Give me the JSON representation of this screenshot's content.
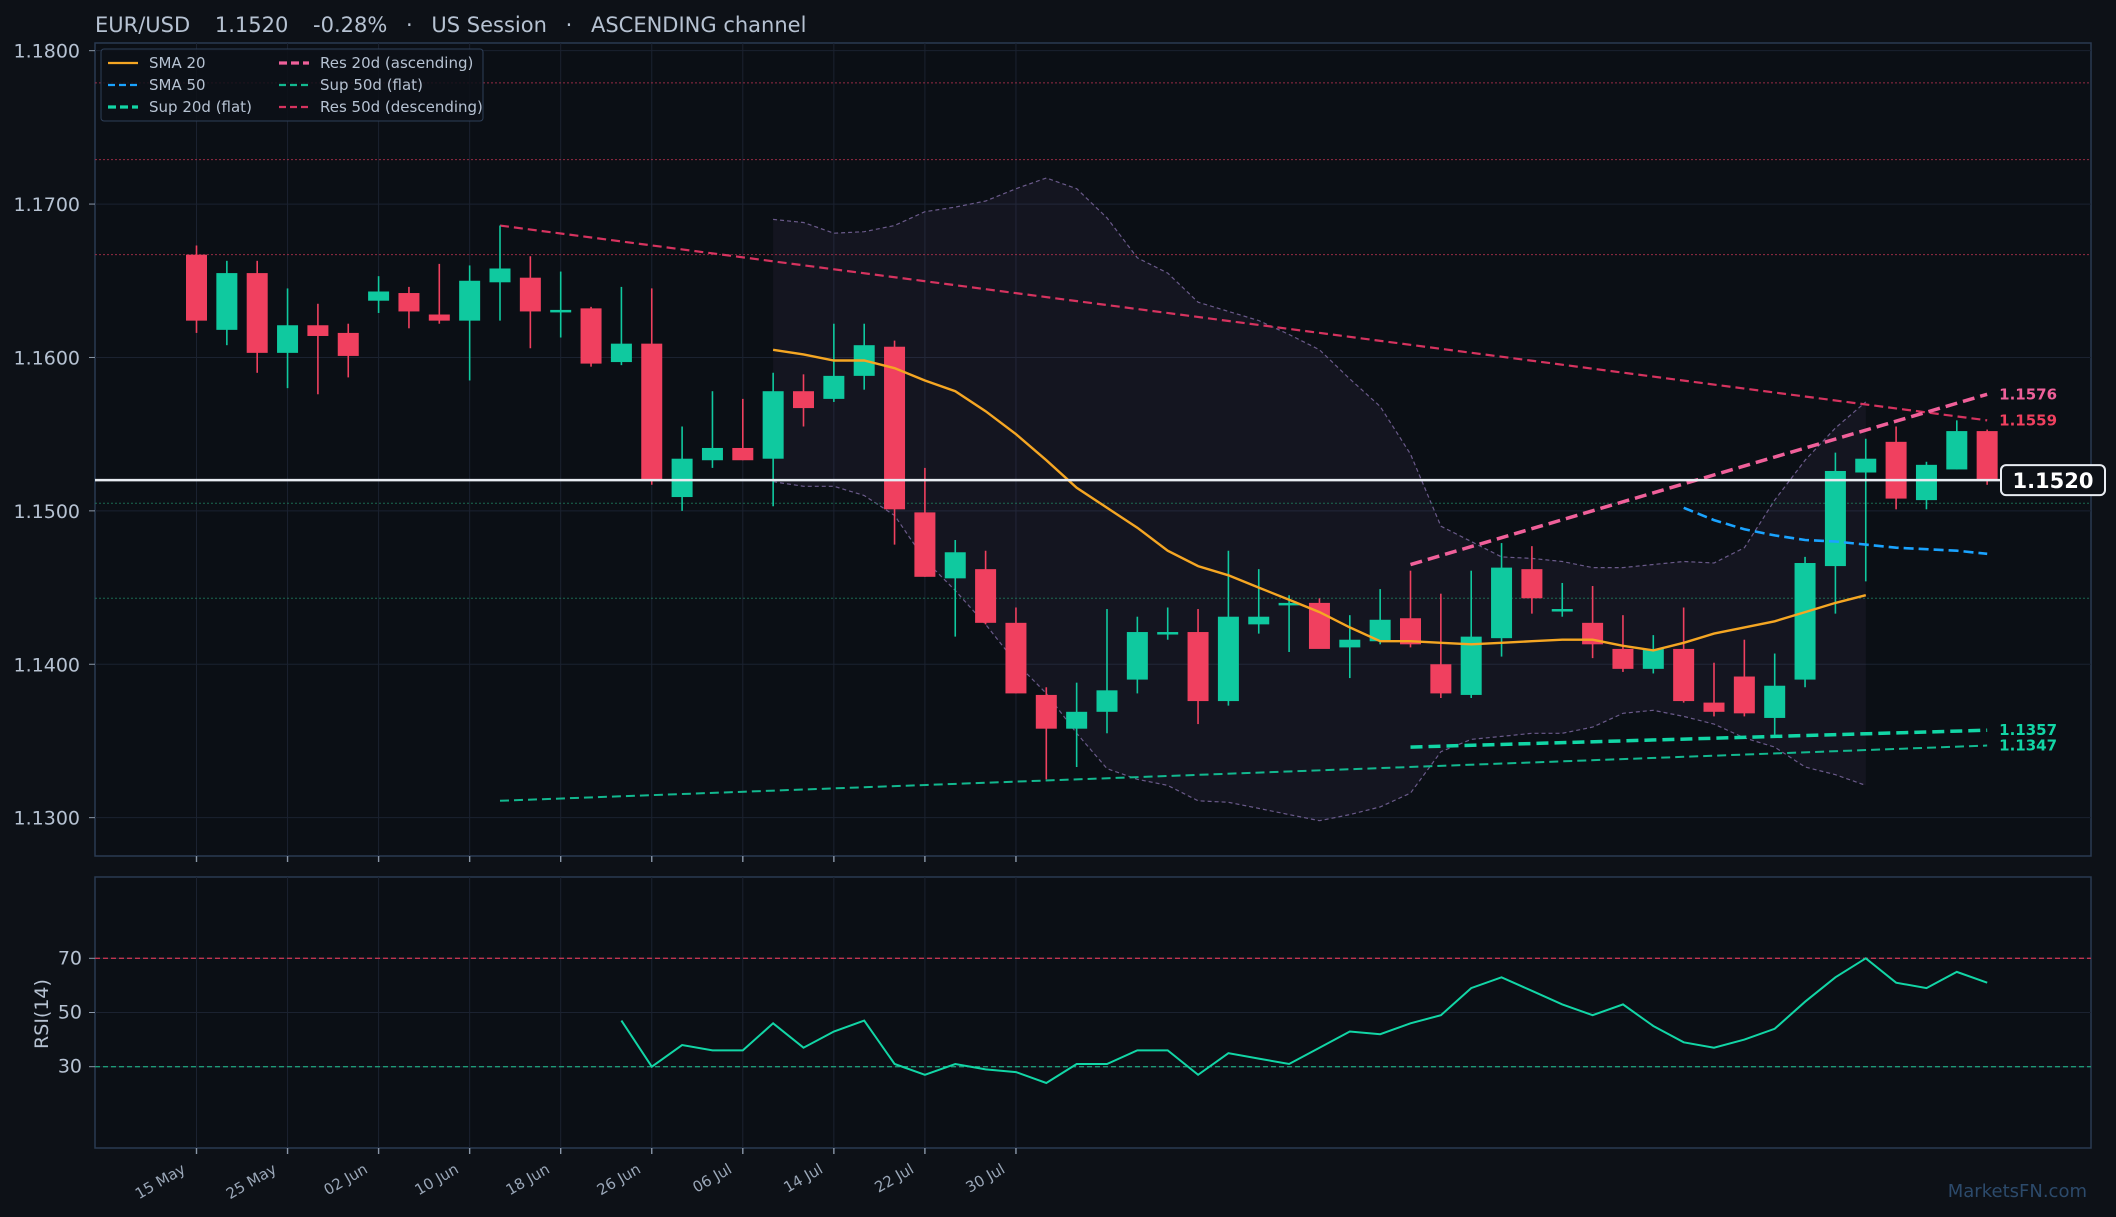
{
  "header": {
    "symbol": "EUR/USD",
    "price": "1.1520",
    "change": "-0.28%",
    "session": "US Session",
    "channel": "ASCENDING channel",
    "separator": "·"
  },
  "watermark": "MarketsFN.com",
  "price_tag": "1.1520",
  "colors": {
    "background": "#0d1117",
    "up": "#0fc99f",
    "down": "#f0405f",
    "sma20": "#f5a623",
    "sma50": "#1aa3ff",
    "res_asc": "#f0609a",
    "sup_flat": "#12d6a6",
    "res_desc": "#d6335f",
    "rsi": "#12d6a6"
  },
  "chart_data": [
    {
      "type": "candlestick",
      "ylim": [
        1.1275,
        1.1805
      ],
      "yticks": [
        "1.1300",
        "1.1400",
        "1.1500",
        "1.1600",
        "1.1700",
        "1.1800"
      ],
      "xticks": [
        {
          "label": "15 May",
          "i": 0
        },
        {
          "label": "25 May",
          "i": 3
        },
        {
          "label": "02 Jun",
          "i": 6
        },
        {
          "label": "10 Jun",
          "i": 9
        },
        {
          "label": "18 Jun",
          "i": 12
        },
        {
          "label": "26 Jun",
          "i": 15
        },
        {
          "label": "06 Jul",
          "i": 18
        },
        {
          "label": "14 Jul",
          "i": 21
        },
        {
          "label": "22 Jul",
          "i": 24
        },
        {
          "label": "30 Jul",
          "i": 27
        }
      ],
      "candles": [
        [
          1.1667,
          1.1673,
          1.1616,
          1.1624
        ],
        [
          1.1618,
          1.1663,
          1.1608,
          1.1655
        ],
        [
          1.1655,
          1.1663,
          1.159,
          1.1603
        ],
        [
          1.1603,
          1.1645,
          1.158,
          1.1621
        ],
        [
          1.1621,
          1.1635,
          1.1576,
          1.1614
        ],
        [
          1.1616,
          1.1622,
          1.1587,
          1.1601
        ],
        [
          1.1637,
          1.1653,
          1.1629,
          1.1643
        ],
        [
          1.1642,
          1.1646,
          1.1619,
          1.163
        ],
        [
          1.1628,
          1.1661,
          1.1622,
          1.1624
        ],
        [
          1.1624,
          1.166,
          1.1585,
          1.165
        ],
        [
          1.1649,
          1.1686,
          1.1624,
          1.1658
        ],
        [
          1.1652,
          1.1666,
          1.1606,
          1.163
        ],
        [
          1.1631,
          1.1656,
          1.1613,
          1.1631
        ],
        [
          1.1632,
          1.1633,
          1.1594,
          1.1596
        ],
        [
          1.1597,
          1.1646,
          1.1595,
          1.1609
        ],
        [
          1.1609,
          1.1645,
          1.1517,
          1.152
        ],
        [
          1.1509,
          1.1555,
          1.15,
          1.1534
        ],
        [
          1.1533,
          1.1578,
          1.1528,
          1.1541
        ],
        [
          1.1541,
          1.1573,
          1.1533,
          1.1533
        ],
        [
          1.1534,
          1.159,
          1.1503,
          1.1578
        ],
        [
          1.1578,
          1.1589,
          1.1555,
          1.1567
        ],
        [
          1.1573,
          1.1622,
          1.1571,
          1.1588
        ],
        [
          1.1588,
          1.1622,
          1.1579,
          1.1608
        ],
        [
          1.1607,
          1.1611,
          1.1478,
          1.1501
        ],
        [
          1.1499,
          1.1528,
          1.1457,
          1.1457
        ],
        [
          1.1456,
          1.1481,
          1.1418,
          1.1473
        ],
        [
          1.1462,
          1.1474,
          1.1426,
          1.1427
        ],
        [
          1.1427,
          1.1437,
          1.1381,
          1.1381
        ],
        [
          1.138,
          1.1385,
          1.1325,
          1.1358
        ],
        [
          1.1358,
          1.1388,
          1.1333,
          1.1369
        ],
        [
          1.1369,
          1.1436,
          1.1355,
          1.1383
        ],
        [
          1.139,
          1.1431,
          1.1381,
          1.1421
        ],
        [
          1.1421,
          1.1437,
          1.1416,
          1.1421
        ],
        [
          1.1421,
          1.1436,
          1.1361,
          1.1376
        ],
        [
          1.1376,
          1.1474,
          1.1373,
          1.1431
        ],
        [
          1.1426,
          1.1462,
          1.142,
          1.1431
        ],
        [
          1.1439,
          1.1445,
          1.1408,
          1.144
        ],
        [
          1.144,
          1.1443,
          1.1411,
          1.141
        ],
        [
          1.1411,
          1.1432,
          1.1391,
          1.1416
        ],
        [
          1.1415,
          1.1449,
          1.1413,
          1.1429
        ],
        [
          1.143,
          1.1461,
          1.1411,
          1.1413
        ],
        [
          1.14,
          1.1446,
          1.1378,
          1.1381
        ],
        [
          1.138,
          1.1461,
          1.1378,
          1.1418
        ],
        [
          1.1417,
          1.1479,
          1.1405,
          1.1463
        ],
        [
          1.1462,
          1.1477,
          1.1433,
          1.1443
        ],
        [
          1.1436,
          1.1453,
          1.1431,
          1.1436
        ],
        [
          1.1427,
          1.1451,
          1.1404,
          1.1413
        ],
        [
          1.141,
          1.1432,
          1.1395,
          1.1397
        ],
        [
          1.1397,
          1.1419,
          1.1394,
          1.141
        ],
        [
          1.141,
          1.1437,
          1.1375,
          1.1376
        ],
        [
          1.1375,
          1.1401,
          1.1366,
          1.1369
        ],
        [
          1.1392,
          1.1416,
          1.1366,
          1.1368
        ],
        [
          1.1365,
          1.1407,
          1.1354,
          1.1386
        ],
        [
          1.139,
          1.147,
          1.1385,
          1.1466
        ],
        [
          1.1464,
          1.1538,
          1.1433,
          1.1526
        ],
        [
          1.1525,
          1.1547,
          1.1454,
          1.1534
        ],
        [
          1.1545,
          1.1555,
          1.1501,
          1.1508
        ],
        [
          1.1507,
          1.1532,
          1.1501,
          1.153
        ],
        [
          1.1527,
          1.1559,
          1.1527,
          1.1552
        ],
        [
          1.1552,
          1.1553,
          1.1517,
          1.152
        ]
      ],
      "sma20": {
        "start": 19,
        "values": [
          1.1605,
          1.1602,
          1.1598,
          1.1598,
          1.1593,
          1.1585,
          1.1578,
          1.1565,
          1.155,
          1.1533,
          1.1515,
          1.1502,
          1.1489,
          1.1474,
          1.1464,
          1.1458,
          1.145,
          1.1442,
          1.1434,
          1.1424,
          1.1415,
          1.1415,
          1.1414,
          1.1413,
          1.1414,
          1.1415,
          1.1416,
          1.1416,
          1.1412,
          1.1409,
          1.1414,
          1.142,
          1.1424,
          1.1428,
          1.1434,
          1.144,
          1.1445
        ]
      },
      "sma50": {
        "start": 49,
        "values": [
          1.1502,
          1.1494,
          1.1488,
          1.1484,
          1.1481,
          1.148,
          1.1478,
          1.1476,
          1.1475,
          1.1474,
          1.1472
        ]
      },
      "bollinger_upper": {
        "start": 19,
        "values": [
          1.169,
          1.1688,
          1.1681,
          1.1682,
          1.1686,
          1.1695,
          1.1698,
          1.1702,
          1.171,
          1.1717,
          1.171,
          1.1691,
          1.1665,
          1.1655,
          1.1636,
          1.163,
          1.1624,
          1.1615,
          1.1605,
          1.1586,
          1.1568,
          1.1537,
          1.149,
          1.148,
          1.147,
          1.1469,
          1.1467,
          1.1463,
          1.1463,
          1.1465,
          1.1467,
          1.1466,
          1.1476,
          1.1507,
          1.1533,
          1.1554,
          1.1571
        ]
      },
      "bollinger_lower": {
        "start": 19,
        "values": [
          1.1519,
          1.1516,
          1.1516,
          1.151,
          1.1497,
          1.1468,
          1.1448,
          1.1426,
          1.1401,
          1.1381,
          1.1355,
          1.1332,
          1.1325,
          1.1321,
          1.1311,
          1.131,
          1.1306,
          1.1302,
          1.1298,
          1.1302,
          1.1307,
          1.1316,
          1.1343,
          1.1351,
          1.1353,
          1.1355,
          1.1355,
          1.1359,
          1.1368,
          1.137,
          1.1366,
          1.1361,
          1.1352,
          1.1346,
          1.1333,
          1.1328,
          1.1321
        ]
      },
      "current_price": 1.152,
      "resistance_lines": [
        1.1779,
        1.1729,
        1.1667
      ],
      "support_lines": [
        1.1505,
        1.1443
      ],
      "trendlines": {
        "res_20d_ascending": {
          "start": [
            40,
            1.1465
          ],
          "end": [
            59,
            1.1576
          ],
          "label": "1.1576"
        },
        "sup_20d_flat": {
          "start": [
            40,
            1.1346
          ],
          "end": [
            59,
            1.1357
          ],
          "label": "1.1357"
        },
        "res_50d_descending": {
          "start": [
            10,
            1.1686
          ],
          "end": [
            59,
            1.1559
          ],
          "label": "1.1559"
        },
        "sup_50d_flat": {
          "start": [
            10,
            1.1311
          ],
          "end": [
            59,
            1.1347
          ],
          "label": "1.1347"
        }
      },
      "legend": {
        "placement": "top-left",
        "entries": [
          {
            "label": "SMA 20",
            "style": "solid",
            "color": "#f5a623"
          },
          {
            "label": "SMA 50",
            "style": "dashed",
            "color": "#1aa3ff"
          },
          {
            "label": "Sup 20d (flat)",
            "style": "bold-dashed",
            "color": "#12d6a6"
          },
          {
            "label": "Res 20d (ascending)",
            "style": "bold-dashed",
            "color": "#f0609a"
          },
          {
            "label": "Sup 50d (flat)",
            "style": "dashed",
            "color": "#12b88f"
          },
          {
            "label": "Res 50d (descending)",
            "style": "dashed",
            "color": "#d6335f"
          }
        ]
      }
    },
    {
      "type": "line",
      "ylabel": "RSI(14)",
      "ylim": [
        0,
        100
      ],
      "yticks": [
        "30",
        "50",
        "70"
      ],
      "levels": [
        30,
        70
      ],
      "start": 14,
      "values": [
        47,
        30,
        38,
        36,
        36,
        46,
        37,
        43,
        47,
        31,
        27,
        31,
        29,
        28,
        24,
        31,
        31,
        36,
        36,
        27,
        35,
        33,
        31,
        37,
        43,
        42,
        46,
        49,
        59,
        63,
        58,
        53,
        49,
        53,
        45,
        39,
        37,
        40,
        44,
        54,
        63,
        70,
        61,
        59,
        65,
        61
      ]
    }
  ]
}
